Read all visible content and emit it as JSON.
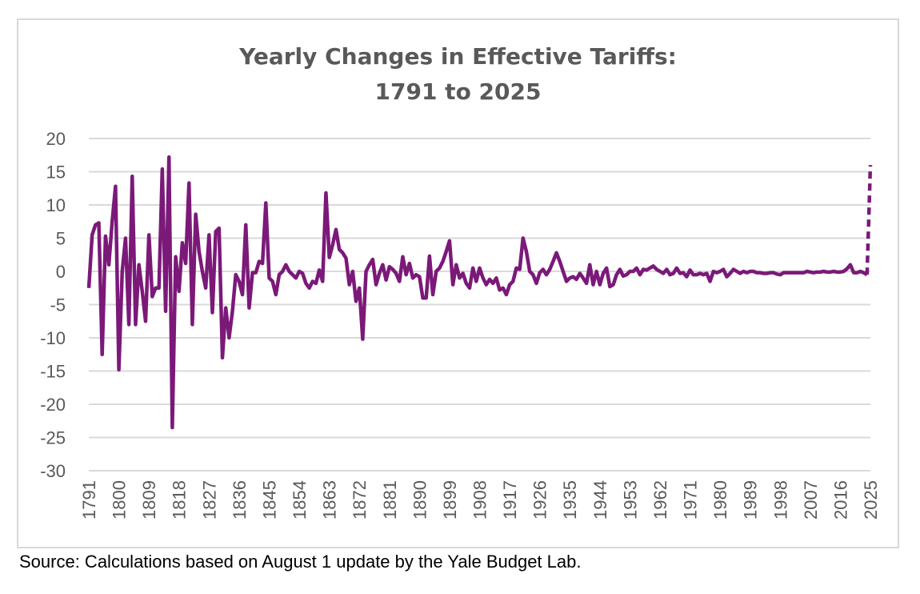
{
  "chart_data": {
    "type": "line",
    "title": "Yearly Changes in Effective Tariffs:",
    "subtitle": "1791 to 2025",
    "xlabel": "",
    "ylabel": "",
    "ylim": [
      -30,
      20
    ],
    "yticks": [
      20,
      15,
      10,
      5,
      0,
      -5,
      -10,
      -15,
      -20,
      -25,
      -30
    ],
    "xlim": [
      1791,
      2025
    ],
    "xticks": [
      1791,
      1800,
      1809,
      1818,
      1827,
      1836,
      1845,
      1854,
      1863,
      1872,
      1881,
      1890,
      1899,
      1908,
      1917,
      1926,
      1935,
      1944,
      1953,
      1962,
      1971,
      1980,
      1989,
      1998,
      2007,
      2016,
      2025
    ],
    "grid": true,
    "legend": "none",
    "series": [
      {
        "line_color": "#7b1979",
        "line_style": "solid",
        "points": [
          [
            1791,
            -2.5
          ],
          [
            1792,
            5.5
          ],
          [
            1793,
            7
          ],
          [
            1794,
            7.3
          ],
          [
            1795,
            -12.5
          ],
          [
            1796,
            5.3
          ],
          [
            1797,
            1
          ],
          [
            1798,
            7.5
          ],
          [
            1799,
            12.8
          ],
          [
            1800,
            -14.8
          ],
          [
            1801,
            0
          ],
          [
            1802,
            5
          ],
          [
            1803,
            -8
          ],
          [
            1804,
            14.3
          ],
          [
            1805,
            -8
          ],
          [
            1806,
            1
          ],
          [
            1807,
            -3
          ],
          [
            1808,
            -7.5
          ],
          [
            1809,
            5.5
          ],
          [
            1810,
            -3.8
          ],
          [
            1811,
            -2.5
          ],
          [
            1812,
            -2.5
          ],
          [
            1813,
            15.4
          ],
          [
            1814,
            -6
          ],
          [
            1815,
            17.2
          ],
          [
            1816,
            -23.5
          ],
          [
            1817,
            2.2
          ],
          [
            1818,
            -3
          ],
          [
            1819,
            4.3
          ],
          [
            1820,
            1.2
          ],
          [
            1821,
            13.3
          ],
          [
            1822,
            -8
          ],
          [
            1823,
            8.6
          ],
          [
            1824,
            3
          ],
          [
            1825,
            0
          ],
          [
            1826,
            -2.5
          ],
          [
            1827,
            5.5
          ],
          [
            1828,
            -6.2
          ],
          [
            1829,
            6
          ],
          [
            1830,
            6.5
          ],
          [
            1831,
            -13
          ],
          [
            1832,
            -5.5
          ],
          [
            1833,
            -10
          ],
          [
            1834,
            -6
          ],
          [
            1835,
            -0.5
          ],
          [
            1836,
            -1.5
          ],
          [
            1837,
            -3.5
          ],
          [
            1838,
            7
          ],
          [
            1839,
            -5.5
          ],
          [
            1840,
            -0.2
          ],
          [
            1841,
            -0.2
          ],
          [
            1842,
            1.5
          ],
          [
            1843,
            1.2
          ],
          [
            1844,
            10.3
          ],
          [
            1845,
            -1
          ],
          [
            1846,
            -1.5
          ],
          [
            1847,
            -3.5
          ],
          [
            1848,
            -0.5
          ],
          [
            1849,
            0
          ],
          [
            1850,
            1
          ],
          [
            1851,
            0
          ],
          [
            1852,
            -0.5
          ],
          [
            1853,
            -1
          ],
          [
            1854,
            0
          ],
          [
            1855,
            -0.3
          ],
          [
            1856,
            -1.8
          ],
          [
            1857,
            -2.5
          ],
          [
            1858,
            -1.5
          ],
          [
            1859,
            -1.8
          ],
          [
            1860,
            0.2
          ],
          [
            1861,
            -1.5
          ],
          [
            1862,
            11.8
          ],
          [
            1863,
            2.1
          ],
          [
            1864,
            4
          ],
          [
            1865,
            6.3
          ],
          [
            1866,
            3.3
          ],
          [
            1867,
            2.8
          ],
          [
            1868,
            2
          ],
          [
            1869,
            -2
          ],
          [
            1870,
            0
          ],
          [
            1871,
            -4.5
          ],
          [
            1872,
            -2.5
          ],
          [
            1873,
            -10.2
          ],
          [
            1874,
            0
          ],
          [
            1875,
            1
          ],
          [
            1876,
            1.8
          ],
          [
            1877,
            -2
          ],
          [
            1878,
            -0.3
          ],
          [
            1879,
            1
          ],
          [
            1880,
            -1.3
          ],
          [
            1881,
            0.7
          ],
          [
            1882,
            0.3
          ],
          [
            1883,
            -0.3
          ],
          [
            1884,
            -1.5
          ],
          [
            1885,
            2.2
          ],
          [
            1886,
            -0.5
          ],
          [
            1887,
            1.2
          ],
          [
            1888,
            -1
          ],
          [
            1889,
            -0.5
          ],
          [
            1890,
            -0.8
          ],
          [
            1891,
            -4
          ],
          [
            1892,
            -4
          ],
          [
            1893,
            2.3
          ],
          [
            1894,
            -3.5
          ],
          [
            1895,
            0
          ],
          [
            1896,
            0.5
          ],
          [
            1897,
            1.5
          ],
          [
            1898,
            3
          ],
          [
            1899,
            4.6
          ],
          [
            1900,
            -2
          ],
          [
            1901,
            1
          ],
          [
            1902,
            -1
          ],
          [
            1903,
            -0.3
          ],
          [
            1904,
            -1.8
          ],
          [
            1905,
            -2.5
          ],
          [
            1906,
            0.5
          ],
          [
            1907,
            -1.5
          ],
          [
            1908,
            0.5
          ],
          [
            1909,
            -1
          ],
          [
            1910,
            -2
          ],
          [
            1911,
            -1.2
          ],
          [
            1912,
            -1.8
          ],
          [
            1913,
            -1
          ],
          [
            1914,
            -2.8
          ],
          [
            1915,
            -2.5
          ],
          [
            1916,
            -3.5
          ],
          [
            1917,
            -2
          ],
          [
            1918,
            -1.5
          ],
          [
            1919,
            0.5
          ],
          [
            1920,
            0.3
          ],
          [
            1921,
            5
          ],
          [
            1922,
            3
          ],
          [
            1923,
            0
          ],
          [
            1924,
            -0.5
          ],
          [
            1925,
            -1.8
          ],
          [
            1926,
            -0.2
          ],
          [
            1927,
            0.3
          ],
          [
            1928,
            -0.5
          ],
          [
            1929,
            0.3
          ],
          [
            1930,
            1.5
          ],
          [
            1931,
            2.8
          ],
          [
            1932,
            1.5
          ],
          [
            1933,
            0
          ],
          [
            1934,
            -1.5
          ],
          [
            1935,
            -1
          ],
          [
            1936,
            -0.8
          ],
          [
            1937,
            -1.2
          ],
          [
            1938,
            -0.3
          ],
          [
            1939,
            -1
          ],
          [
            1940,
            -1.8
          ],
          [
            1941,
            1
          ],
          [
            1942,
            -2
          ],
          [
            1943,
            0
          ],
          [
            1944,
            -2
          ],
          [
            1945,
            -0.3
          ],
          [
            1946,
            0.5
          ],
          [
            1947,
            -2.3
          ],
          [
            1948,
            -2
          ],
          [
            1949,
            -0.5
          ],
          [
            1950,
            0.3
          ],
          [
            1951,
            -0.7
          ],
          [
            1952,
            -0.5
          ],
          [
            1953,
            0
          ],
          [
            1954,
            0
          ],
          [
            1955,
            0.5
          ],
          [
            1956,
            -0.5
          ],
          [
            1957,
            0.3
          ],
          [
            1958,
            0.2
          ],
          [
            1959,
            0.5
          ],
          [
            1960,
            0.8
          ],
          [
            1961,
            0.3
          ],
          [
            1962,
            0
          ],
          [
            1963,
            -0.3
          ],
          [
            1964,
            0.3
          ],
          [
            1965,
            -0.5
          ],
          [
            1966,
            -0.3
          ],
          [
            1967,
            0.5
          ],
          [
            1968,
            -0.3
          ],
          [
            1969,
            -0.2
          ],
          [
            1970,
            -0.8
          ],
          [
            1971,
            0.2
          ],
          [
            1972,
            -0.5
          ],
          [
            1973,
            -0.5
          ],
          [
            1974,
            -0.3
          ],
          [
            1975,
            -0.5
          ],
          [
            1976,
            -0.3
          ],
          [
            1977,
            -1.5
          ],
          [
            1978,
            0
          ],
          [
            1979,
            -0.2
          ],
          [
            1980,
            0
          ],
          [
            1981,
            0.3
          ],
          [
            1982,
            -0.8
          ],
          [
            1983,
            -0.3
          ],
          [
            1984,
            0.3
          ],
          [
            1985,
            0
          ],
          [
            1986,
            -0.3
          ],
          [
            1987,
            0
          ],
          [
            1988,
            -0.2
          ],
          [
            1989,
            0
          ],
          [
            1990,
            0
          ],
          [
            1991,
            -0.2
          ],
          [
            1992,
            -0.2
          ],
          [
            1993,
            -0.3
          ],
          [
            1994,
            -0.3
          ],
          [
            1995,
            -0.2
          ],
          [
            1996,
            -0.2
          ],
          [
            1997,
            -0.4
          ],
          [
            1998,
            -0.5
          ],
          [
            1999,
            -0.2
          ],
          [
            2000,
            -0.2
          ],
          [
            2001,
            -0.2
          ],
          [
            2002,
            -0.2
          ],
          [
            2003,
            -0.2
          ],
          [
            2004,
            -0.2
          ],
          [
            2005,
            -0.2
          ],
          [
            2006,
            0
          ],
          [
            2007,
            -0.1
          ],
          [
            2008,
            -0.2
          ],
          [
            2009,
            -0.1
          ],
          [
            2010,
            -0.1
          ],
          [
            2011,
            0
          ],
          [
            2012,
            -0.1
          ],
          [
            2013,
            -0.1
          ],
          [
            2014,
            0
          ],
          [
            2015,
            -0.1
          ],
          [
            2016,
            -0.1
          ],
          [
            2017,
            0
          ],
          [
            2018,
            0.4
          ],
          [
            2019,
            1
          ],
          [
            2020,
            -0.2
          ],
          [
            2021,
            -0.2
          ],
          [
            2022,
            0
          ],
          [
            2023,
            -0.2
          ],
          [
            2024,
            -0.5
          ]
        ]
      },
      {
        "line_color": "#7b1979",
        "line_style": "dashed",
        "points": [
          [
            2024,
            -0.5
          ],
          [
            2025,
            16
          ]
        ]
      }
    ]
  },
  "source_note": "Source: Calculations based on August 1 update by the Yale Budget Lab."
}
